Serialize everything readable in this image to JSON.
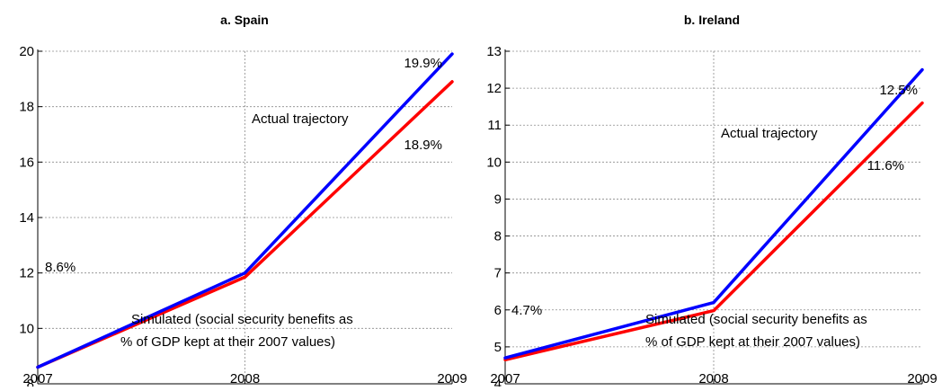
{
  "chart_data": [
    {
      "type": "line",
      "title": "a. Spain",
      "x": [
        "2007",
        "2008",
        "2009"
      ],
      "ylim": [
        8,
        20
      ],
      "yticks": [
        8,
        10,
        12,
        14,
        16,
        18,
        20
      ],
      "grid": true,
      "series": [
        {
          "values": [
            8.6,
            12.0,
            19.9
          ],
          "color": "#0000ff"
        },
        {
          "values": [
            8.6,
            11.85,
            18.9
          ],
          "color": "#ff0000"
        }
      ],
      "annotations": [
        "8.6%",
        "19.9%",
        "18.9%",
        "Actual trajectory",
        "Simulated (social security benefits as",
        "% of GDP kept at their 2007 values)"
      ]
    },
    {
      "type": "line",
      "title": "b. Ireland",
      "x": [
        "2007",
        "2008",
        "2009"
      ],
      "ylim": [
        4,
        13
      ],
      "yticks": [
        4,
        5,
        6,
        7,
        8,
        9,
        10,
        11,
        12,
        13
      ],
      "grid": true,
      "series": [
        {
          "values": [
            4.7,
            6.2,
            12.5
          ],
          "color": "#0000ff"
        },
        {
          "values": [
            4.65,
            5.98,
            11.6
          ],
          "color": "#ff0000"
        }
      ],
      "annotations": [
        "4.7%",
        "12.5%",
        "11.6%",
        "Actual trajectory",
        "Simulated (social security benefits as",
        "% of GDP kept at their 2007 values)"
      ]
    }
  ]
}
